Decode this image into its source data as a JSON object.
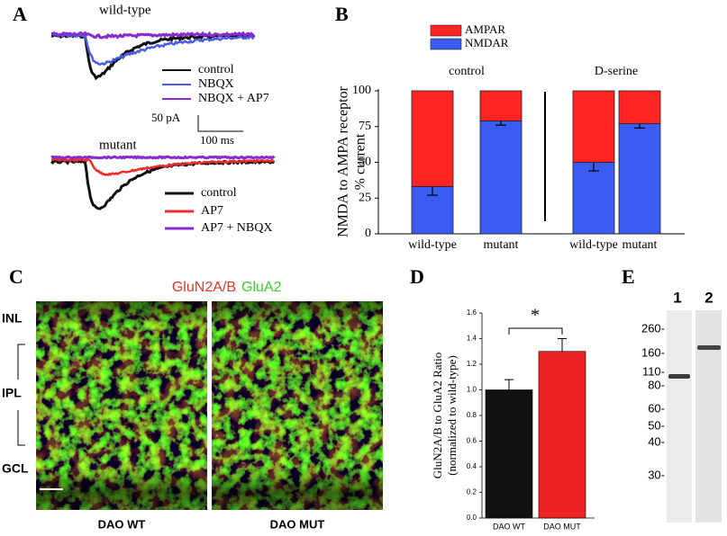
{
  "panel_labels": [
    "A",
    "B",
    "C",
    "D",
    "E"
  ],
  "panel_a": {
    "top": {
      "title": "wild-type",
      "legend": [
        "control",
        "NBQX",
        "NBQX + AP7"
      ]
    },
    "scale": {
      "y": "50 pA",
      "x": "100 ms"
    },
    "bottom": {
      "title": "mutant",
      "legend": [
        "control",
        "AP7",
        "AP7 + NBQX"
      ]
    }
  },
  "chart_data": [
    {
      "type": "stacked_bar",
      "y_label": [
        "NMDA to AMPA receptor",
        "% current"
      ],
      "groups": [
        "control",
        "D-serine"
      ],
      "categories": [
        "wild-type",
        "mutant",
        "wild-type",
        "mutant"
      ],
      "series": [
        {
          "name": "NMDAR",
          "color": "#3a5cf0",
          "values": [
            33,
            79,
            50,
            77
          ],
          "errors": [
            6,
            3,
            6,
            3
          ]
        },
        {
          "name": "AMPAR",
          "color": "#ff2424",
          "values": [
            67,
            21,
            50,
            23
          ]
        }
      ],
      "ylim": [
        0,
        100
      ],
      "yticks": [
        0,
        25,
        50,
        75,
        100
      ]
    },
    {
      "type": "bar",
      "y_label": [
        "GluN2A/B to GluA2 Ratio",
        "(normalized to wild-type)"
      ],
      "categories": [
        "DAO WT",
        "DAO MUT"
      ],
      "values": [
        1.0,
        1.3
      ],
      "errors": [
        0.08,
        0.1
      ],
      "colors": [
        "#111111",
        "#ee2222"
      ],
      "ylim": [
        0,
        1.6
      ],
      "yticks": [
        {
          "value": 0,
          "label": "0.0"
        },
        0.2,
        0.4,
        0.6,
        0.8,
        {
          "value": 1,
          "label": "1.0"
        },
        1.2,
        1.4,
        1.6
      ],
      "annotation": "*"
    }
  ],
  "panel_c": {
    "stains": [
      "GluN2A/B",
      "GluA2"
    ],
    "layers": [
      "INL",
      "IPL",
      "GCL"
    ],
    "images": [
      "DAO WT",
      "DAO MUT"
    ]
  },
  "panel_e": {
    "lanes": [
      "1",
      "2"
    ],
    "markers": [
      "260-",
      "160-",
      "110-",
      "80-",
      "60-",
      "50-",
      "40-",
      "30-"
    ]
  }
}
